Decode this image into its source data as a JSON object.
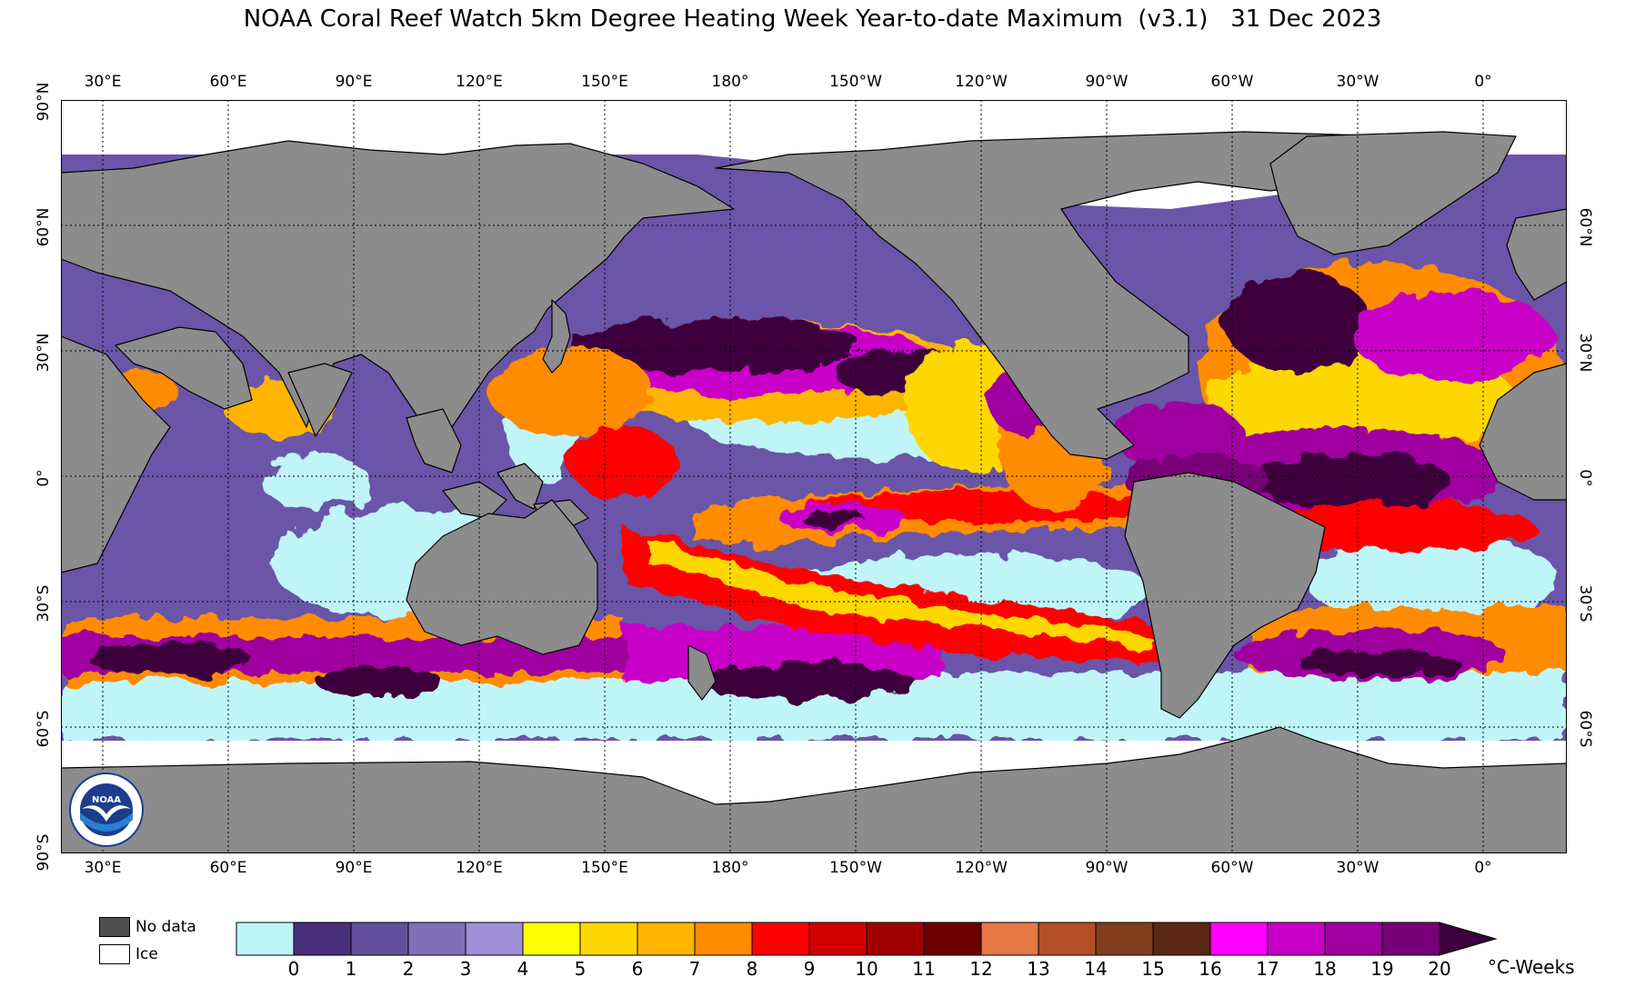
{
  "title": "NOAA Coral Reef Watch 5km Degree Heating Week Year-to-date Maximum  (v3.1)   31 Dec 2023",
  "map": {
    "colors": {
      "land": "#8c8c8c",
      "ice": "#ffffff",
      "cool": "#c0f5f8",
      "border": "#000000"
    },
    "lon_labels": [
      "30°E",
      "60°E",
      "90°E",
      "120°E",
      "150°E",
      "180°",
      "150°W",
      "120°W",
      "90°W",
      "60°W",
      "30°W",
      "0°"
    ],
    "lat_labels_left": [
      "90°N",
      "60°N",
      "30°N",
      "0°",
      "30°S",
      "60°S",
      "90°S"
    ],
    "lat_labels_right": [
      "60°N",
      "30°N",
      "0°",
      "30°S",
      "60°S"
    ]
  },
  "legend": {
    "no_data": {
      "label": "No data",
      "color": "#505050"
    },
    "ice": {
      "label": "Ice",
      "color": "#ffffff"
    },
    "colorbar": {
      "colors": [
        "#c0f5f8",
        "#4a2f7c",
        "#62509c",
        "#8070ba",
        "#a090d8",
        "#ffff00",
        "#ffd700",
        "#ffb400",
        "#ff8c00",
        "#ff0000",
        "#d20000",
        "#a00000",
        "#6e0000",
        "#e67846",
        "#b45028",
        "#823c1e",
        "#5a2814",
        "#ff00ff",
        "#c800c8",
        "#a000a0",
        "#780078",
        "#3c003c"
      ],
      "ticks": [
        "0",
        "1",
        "2",
        "3",
        "4",
        "5",
        "6",
        "7",
        "8",
        "9",
        "10",
        "11",
        "12",
        "13",
        "14",
        "15",
        "16",
        "17",
        "18",
        "19",
        "20"
      ],
      "unit": "°C-Weeks"
    }
  },
  "logo": {
    "text": "NOAA",
    "icon": "noaa-logo-icon"
  }
}
